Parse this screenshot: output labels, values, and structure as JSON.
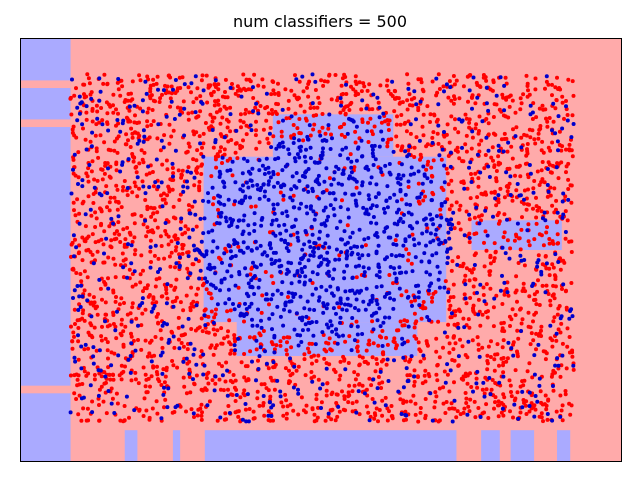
{
  "chart_data": {
    "type": "scatter",
    "title": "num classifiers = 500",
    "xlabel": "",
    "ylabel": "",
    "xlim": [
      0,
      1
    ],
    "ylim": [
      0,
      1
    ],
    "grid": false,
    "axes_ticks": false,
    "background_regions": {
      "description_class_colors": {
        "class_0": "#ffaaaa",
        "class_1": "#aaaaff"
      },
      "default_class": "class_0",
      "class_1_rectangles": [
        {
          "x": [
            0.0,
            0.084
          ],
          "y": [
            0.0,
            1.0
          ]
        },
        {
          "x": [
            0.174,
            0.195
          ],
          "y": [
            0.0,
            0.075
          ]
        },
        {
          "x": [
            0.254,
            0.266
          ],
          "y": [
            0.0,
            0.075
          ]
        },
        {
          "x": [
            0.307,
            0.725
          ],
          "y": [
            0.0,
            0.075
          ]
        },
        {
          "x": [
            0.766,
            0.797
          ],
          "y": [
            0.0,
            0.075
          ]
        },
        {
          "x": [
            0.815,
            0.854
          ],
          "y": [
            0.0,
            0.075
          ]
        },
        {
          "x": [
            0.892,
            0.914
          ],
          "y": [
            0.0,
            0.075
          ]
        },
        {
          "x": [
            0.305,
            0.708
          ],
          "y": [
            0.33,
            0.72
          ]
        },
        {
          "x": [
            0.36,
            0.66
          ],
          "y": [
            0.25,
            0.33
          ]
        },
        {
          "x": [
            0.42,
            0.62
          ],
          "y": [
            0.72,
            0.82
          ]
        },
        {
          "x": [
            0.75,
            0.9
          ],
          "y": [
            0.5,
            0.57
          ]
        }
      ],
      "class_0_strips_in_left_column": [
        {
          "x": [
            0.0,
            0.084
          ],
          "y": [
            0.882,
            0.9
          ]
        },
        {
          "x": [
            0.0,
            0.084
          ],
          "y": [
            0.79,
            0.808
          ]
        },
        {
          "x": [
            0.0,
            0.084
          ],
          "y": [
            0.162,
            0.18
          ]
        }
      ]
    },
    "series": [
      {
        "color": "#ff0000",
        "marker": "circle",
        "point_region": {
          "x": [
            0.083,
            0.92
          ],
          "y": [
            0.095,
            0.915
          ]
        },
        "approx_count": 2600,
        "distribution": "uniform over region, sparse in central blob"
      },
      {
        "color": "#0000cc",
        "marker": "circle",
        "point_region": {
          "x": [
            0.083,
            0.92
          ],
          "y": [
            0.095,
            0.915
          ]
        },
        "approx_count": 1400,
        "distribution": "dense in central blob x 0.30-0.70, y 0.30-0.75; scattered elsewhere"
      }
    ]
  }
}
